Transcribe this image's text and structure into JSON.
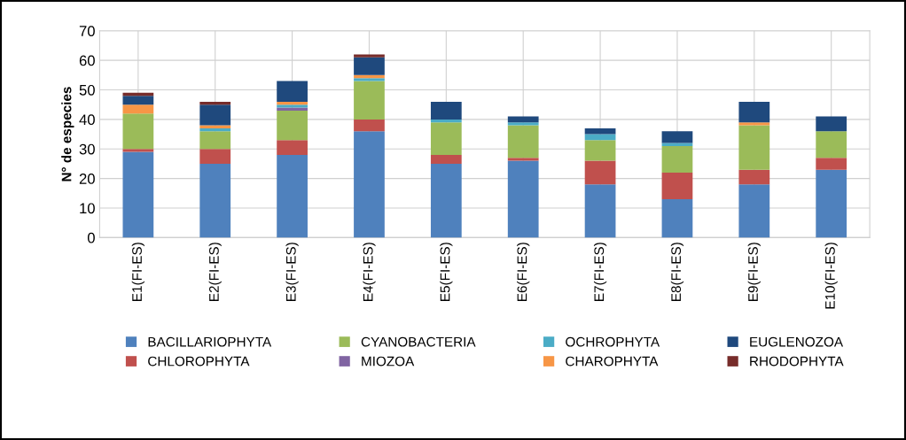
{
  "chart_data": {
    "type": "bar",
    "stacked": true,
    "ylabel": "N° de especies",
    "categories": [
      "E1(FI-ES)",
      "E2(FI-ES)",
      "E3(FI-ES)",
      "E4(FI-ES)",
      "E5(FI-ES)",
      "E6(FI-ES)",
      "E7(FI-ES)",
      "E8(FI-ES)",
      "E9(FI-ES)",
      "E10(FI-ES)"
    ],
    "series": [
      {
        "name": "BACILLARIOPHYTA",
        "color": "#4f81bd",
        "values": [
          29,
          25,
          28,
          36,
          25,
          26,
          18,
          13,
          18,
          23
        ]
      },
      {
        "name": "CHLOROPHYTA",
        "color": "#c0504d",
        "values": [
          1,
          5,
          5,
          4,
          3,
          1,
          8,
          9,
          5,
          4
        ]
      },
      {
        "name": "CYANOBACTERIA",
        "color": "#9bbb59",
        "values": [
          12,
          6,
          10,
          13,
          11,
          11,
          7,
          9,
          15,
          9
        ]
      },
      {
        "name": "MIOZOA",
        "color": "#8064a2",
        "values": [
          0,
          0,
          1,
          0,
          0,
          0,
          0,
          0,
          0,
          0
        ]
      },
      {
        "name": "OCHROPHYTA",
        "color": "#4bacc6",
        "values": [
          0,
          1,
          1,
          1,
          1,
          1,
          2,
          1,
          0,
          0
        ]
      },
      {
        "name": "CHAROPHYTA",
        "color": "#f79646",
        "values": [
          3,
          1,
          1,
          1,
          0,
          0,
          0,
          0,
          1,
          0
        ]
      },
      {
        "name": "EUGLENOZOA",
        "color": "#1f497d",
        "values": [
          3,
          7,
          7,
          6,
          6,
          2,
          2,
          4,
          7,
          5
        ]
      },
      {
        "name": "RHODOPHYTA",
        "color": "#772c2a",
        "values": [
          1,
          1,
          0,
          1,
          0,
          0,
          0,
          0,
          0,
          0
        ]
      }
    ],
    "ylim": [
      0,
      70
    ],
    "yticks": [
      0,
      10,
      20,
      30,
      40,
      50,
      60,
      70
    ],
    "grid": true,
    "legend": "bottom"
  }
}
